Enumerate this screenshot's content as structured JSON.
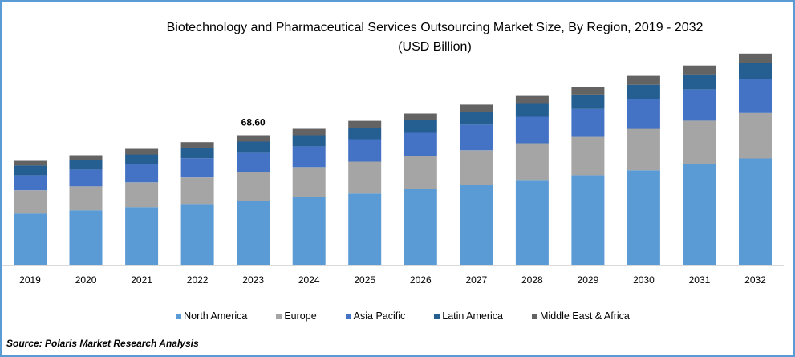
{
  "chart_data": {
    "type": "bar",
    "stacked": true,
    "title": "Biotechnology and Pharmaceutical Services Outsourcing Market Size, By Region, 2019 - 2032",
    "subtitle": "(USD Billion)",
    "xlabel": "",
    "ylabel": "",
    "ylim": [
      0,
      130
    ],
    "grid": false,
    "legend_position": "bottom",
    "categories": [
      "2019",
      "2020",
      "2021",
      "2022",
      "2023",
      "2024",
      "2025",
      "2026",
      "2027",
      "2028",
      "2029",
      "2030",
      "2031",
      "2032"
    ],
    "series": [
      {
        "name": "North America",
        "color": "#5b9bd5",
        "values": [
          27.1,
          28.8,
          30.5,
          32.2,
          33.9,
          36.0,
          37.7,
          40.2,
          42.4,
          44.9,
          47.4,
          50.0,
          53.4,
          56.3
        ]
      },
      {
        "name": "Europe",
        "color": "#a5a5a5",
        "values": [
          12.3,
          12.7,
          13.1,
          14.0,
          15.2,
          15.7,
          16.9,
          17.4,
          18.2,
          19.5,
          20.3,
          22.0,
          22.9,
          24.1
        ]
      },
      {
        "name": "Asia Pacific",
        "color": "#4472c4",
        "values": [
          8.0,
          8.9,
          9.7,
          10.2,
          10.2,
          11.0,
          11.9,
          12.3,
          13.6,
          14.0,
          14.8,
          15.7,
          16.5,
          17.8
        ]
      },
      {
        "name": "Latin America",
        "color": "#255e91",
        "values": [
          5.1,
          5.1,
          5.1,
          5.5,
          5.9,
          5.9,
          5.9,
          6.8,
          6.8,
          6.8,
          7.6,
          7.6,
          8.0,
          8.5
        ]
      },
      {
        "name": "Middle East & Africa",
        "color": "#636363",
        "values": [
          2.5,
          2.5,
          3.0,
          3.0,
          3.4,
          3.4,
          3.8,
          3.4,
          3.8,
          4.2,
          4.2,
          4.7,
          4.7,
          5.1
        ]
      }
    ],
    "annotations": [
      {
        "category": "2023",
        "text": "68.60"
      }
    ]
  },
  "source": "Source: Polaris  Market Research Analysis",
  "colors": {
    "frame_border": "#5b9bd5",
    "axis": "#d9d9d9"
  }
}
